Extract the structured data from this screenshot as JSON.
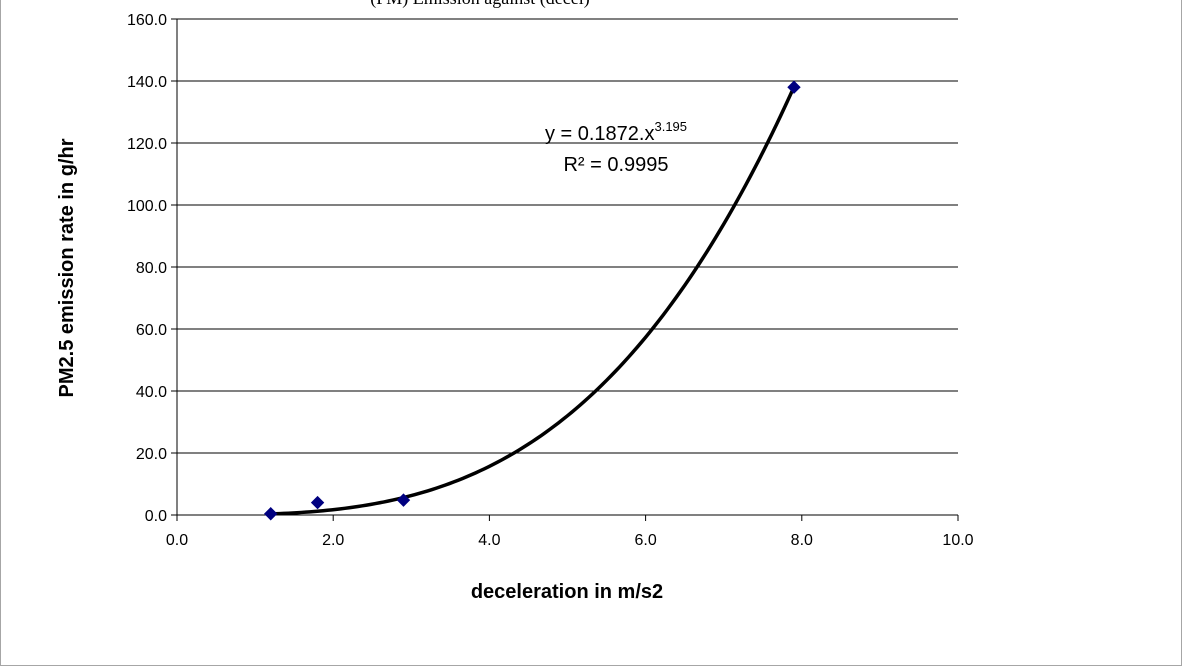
{
  "chart_data": {
    "type": "scatter",
    "title_fragment": "(PM) Emission against (decel)",
    "xlabel": "deceleration in m/s2",
    "ylabel": "PM2.5 emission rate in g/hr",
    "xlim": [
      0,
      10
    ],
    "ylim": [
      0,
      160
    ],
    "x_ticks": [
      "0.0",
      "2.0",
      "4.0",
      "6.0",
      "8.0",
      "10.0"
    ],
    "y_ticks": [
      "0.0",
      "20.0",
      "40.0",
      "60.0",
      "80.0",
      "100.0",
      "120.0",
      "140.0",
      "160.0"
    ],
    "grid": true,
    "series": [
      {
        "marker": "diamond",
        "color": "#000080",
        "x": [
          1.2,
          1.8,
          2.9,
          7.9
        ],
        "y": [
          0.4,
          4.0,
          4.8,
          138.0
        ]
      }
    ],
    "trendline": {
      "type": "power",
      "a": 0.1872,
      "b": 3.195,
      "x_range": [
        1.2,
        7.9
      ],
      "color": "#000000",
      "equation_base": "y = 0.1872.x",
      "equation_exponent": "3.195",
      "r_squared": "R² = 0.9995"
    }
  }
}
